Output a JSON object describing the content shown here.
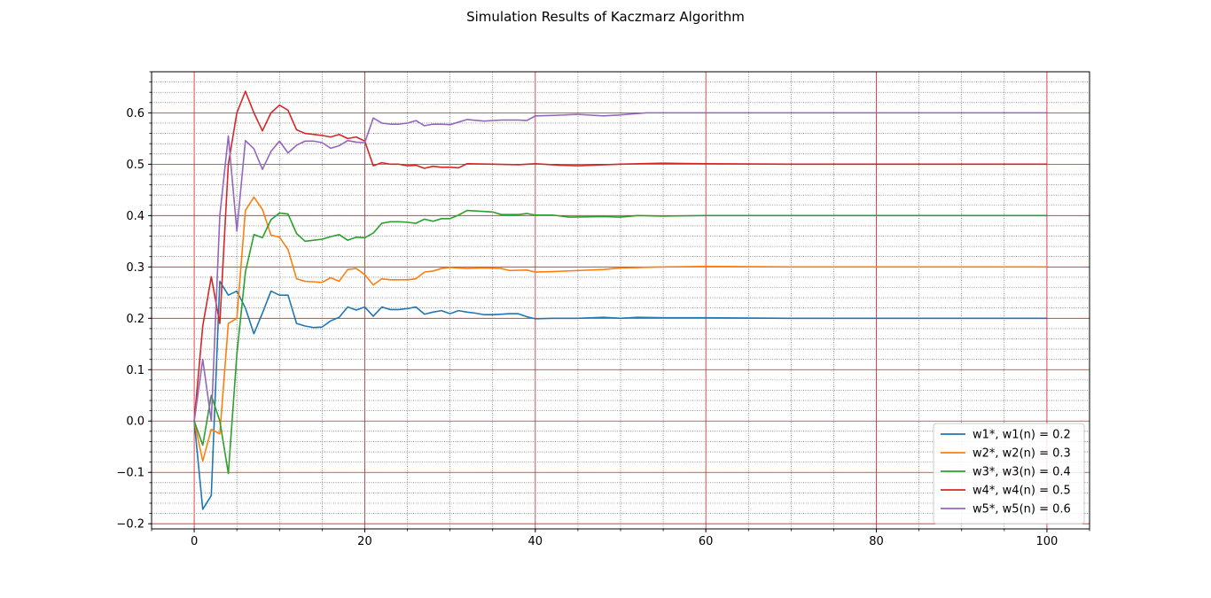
{
  "chart_data": {
    "type": "line",
    "title": "Simulation Results of Kaczmarz Algorithm",
    "xlabel": "",
    "ylabel": "",
    "xlim": [
      -5,
      105
    ],
    "ylim": [
      -0.21,
      0.68
    ],
    "x_ticks": [
      0,
      20,
      40,
      60,
      80,
      100
    ],
    "x_tick_labels": [
      "0",
      "20",
      "40",
      "60",
      "80",
      "100"
    ],
    "x_minor_step": 5,
    "y_ticks": [
      -0.2,
      -0.1,
      0.0,
      0.1,
      0.2,
      0.3,
      0.4,
      0.5,
      0.6
    ],
    "y_tick_labels": [
      "−0.2",
      "−0.1",
      "0.0",
      "0.1",
      "0.2",
      "0.3",
      "0.4",
      "0.5",
      "0.6"
    ],
    "y_minor_step": 0.02,
    "grid": {
      "major": true,
      "major_color": "#d62728",
      "minor": true,
      "minor_style": "dotted",
      "minor_color": "#555555"
    },
    "legend_position": "lower-right",
    "series": [
      {
        "name": "w1*, w1(n) = 0.2",
        "color": "#1f77b4",
        "points": [
          [
            0,
            0
          ],
          [
            1,
            -0.172
          ],
          [
            2,
            -0.145
          ],
          [
            3,
            0.272
          ],
          [
            4,
            0.245
          ],
          [
            5,
            0.253
          ],
          [
            6,
            0.22
          ],
          [
            7,
            0.17
          ],
          [
            8,
            0.21
          ],
          [
            9,
            0.253
          ],
          [
            10,
            0.245
          ],
          [
            11,
            0.245
          ],
          [
            12,
            0.19
          ],
          [
            13,
            0.185
          ],
          [
            14,
            0.182
          ],
          [
            15,
            0.183
          ],
          [
            16,
            0.195
          ],
          [
            17,
            0.202
          ],
          [
            18,
            0.222
          ],
          [
            19,
            0.216
          ],
          [
            20,
            0.222
          ],
          [
            21,
            0.204
          ],
          [
            22,
            0.222
          ],
          [
            23,
            0.217
          ],
          [
            24,
            0.217
          ],
          [
            25,
            0.219
          ],
          [
            26,
            0.222
          ],
          [
            27,
            0.208
          ],
          [
            28,
            0.212
          ],
          [
            29,
            0.215
          ],
          [
            30,
            0.209
          ],
          [
            31,
            0.215
          ],
          [
            32,
            0.212
          ],
          [
            33,
            0.21
          ],
          [
            34,
            0.207
          ],
          [
            35,
            0.207
          ],
          [
            36,
            0.208
          ],
          [
            37,
            0.209
          ],
          [
            38,
            0.209
          ],
          [
            39,
            0.203
          ],
          [
            40,
            0.199
          ],
          [
            42,
            0.2
          ],
          [
            45,
            0.2
          ],
          [
            48,
            0.202
          ],
          [
            50,
            0.2
          ],
          [
            52,
            0.202
          ],
          [
            55,
            0.201
          ],
          [
            60,
            0.201
          ],
          [
            70,
            0.2
          ],
          [
            80,
            0.2
          ],
          [
            90,
            0.2
          ],
          [
            100,
            0.2
          ]
        ]
      },
      {
        "name": "w2*, w2(n) = 0.3",
        "color": "#ff7f0e",
        "points": [
          [
            0,
            0
          ],
          [
            1,
            -0.078
          ],
          [
            2,
            -0.016
          ],
          [
            3,
            -0.025
          ],
          [
            4,
            0.19
          ],
          [
            5,
            0.2
          ],
          [
            6,
            0.41
          ],
          [
            7,
            0.436
          ],
          [
            8,
            0.412
          ],
          [
            9,
            0.362
          ],
          [
            10,
            0.358
          ],
          [
            11,
            0.334
          ],
          [
            12,
            0.277
          ],
          [
            13,
            0.272
          ],
          [
            14,
            0.271
          ],
          [
            15,
            0.27
          ],
          [
            16,
            0.279
          ],
          [
            17,
            0.272
          ],
          [
            18,
            0.295
          ],
          [
            19,
            0.297
          ],
          [
            20,
            0.285
          ],
          [
            21,
            0.265
          ],
          [
            22,
            0.277
          ],
          [
            23,
            0.275
          ],
          [
            24,
            0.275
          ],
          [
            25,
            0.275
          ],
          [
            26,
            0.277
          ],
          [
            27,
            0.29
          ],
          [
            28,
            0.292
          ],
          [
            29,
            0.297
          ],
          [
            30,
            0.299
          ],
          [
            32,
            0.297
          ],
          [
            34,
            0.298
          ],
          [
            36,
            0.297
          ],
          [
            37,
            0.293
          ],
          [
            39,
            0.294
          ],
          [
            40,
            0.29
          ],
          [
            42,
            0.291
          ],
          [
            45,
            0.293
          ],
          [
            48,
            0.295
          ],
          [
            50,
            0.298
          ],
          [
            55,
            0.3
          ],
          [
            60,
            0.301
          ],
          [
            70,
            0.3
          ],
          [
            80,
            0.3
          ],
          [
            90,
            0.3
          ],
          [
            100,
            0.3
          ]
        ]
      },
      {
        "name": "w3*, w3(n) = 0.4",
        "color": "#2ca02c",
        "points": [
          [
            0,
            0
          ],
          [
            1,
            -0.047
          ],
          [
            2,
            0.05
          ],
          [
            3,
            0.0
          ],
          [
            4,
            -0.102
          ],
          [
            5,
            0.13
          ],
          [
            6,
            0.29
          ],
          [
            7,
            0.363
          ],
          [
            8,
            0.357
          ],
          [
            9,
            0.392
          ],
          [
            10,
            0.405
          ],
          [
            11,
            0.403
          ],
          [
            12,
            0.365
          ],
          [
            13,
            0.35
          ],
          [
            14,
            0.352
          ],
          [
            15,
            0.354
          ],
          [
            16,
            0.359
          ],
          [
            17,
            0.363
          ],
          [
            18,
            0.352
          ],
          [
            19,
            0.358
          ],
          [
            20,
            0.357
          ],
          [
            21,
            0.366
          ],
          [
            22,
            0.385
          ],
          [
            23,
            0.388
          ],
          [
            24,
            0.388
          ],
          [
            25,
            0.387
          ],
          [
            26,
            0.385
          ],
          [
            27,
            0.393
          ],
          [
            28,
            0.389
          ],
          [
            29,
            0.394
          ],
          [
            30,
            0.394
          ],
          [
            31,
            0.401
          ],
          [
            32,
            0.41
          ],
          [
            34,
            0.408
          ],
          [
            35,
            0.407
          ],
          [
            36,
            0.402
          ],
          [
            38,
            0.402
          ],
          [
            39,
            0.404
          ],
          [
            40,
            0.401
          ],
          [
            42,
            0.401
          ],
          [
            44,
            0.397
          ],
          [
            48,
            0.398
          ],
          [
            50,
            0.397
          ],
          [
            52,
            0.4
          ],
          [
            55,
            0.399
          ],
          [
            60,
            0.4
          ],
          [
            70,
            0.4
          ],
          [
            80,
            0.4
          ],
          [
            90,
            0.4
          ],
          [
            100,
            0.4
          ]
        ]
      },
      {
        "name": "w4*, w4(n) = 0.5",
        "color": "#d62728",
        "points": [
          [
            0,
            0
          ],
          [
            1,
            0.185
          ],
          [
            2,
            0.281
          ],
          [
            3,
            0.19
          ],
          [
            4,
            0.5
          ],
          [
            5,
            0.6
          ],
          [
            6,
            0.642
          ],
          [
            7,
            0.6
          ],
          [
            8,
            0.565
          ],
          [
            9,
            0.6
          ],
          [
            10,
            0.615
          ],
          [
            11,
            0.605
          ],
          [
            12,
            0.567
          ],
          [
            13,
            0.56
          ],
          [
            14,
            0.558
          ],
          [
            15,
            0.556
          ],
          [
            16,
            0.553
          ],
          [
            17,
            0.558
          ],
          [
            18,
            0.55
          ],
          [
            19,
            0.553
          ],
          [
            20,
            0.545
          ],
          [
            21,
            0.497
          ],
          [
            22,
            0.503
          ],
          [
            23,
            0.5
          ],
          [
            24,
            0.5
          ],
          [
            25,
            0.497
          ],
          [
            26,
            0.498
          ],
          [
            27,
            0.492
          ],
          [
            28,
            0.496
          ],
          [
            29,
            0.494
          ],
          [
            30,
            0.494
          ],
          [
            31,
            0.493
          ],
          [
            32,
            0.501
          ],
          [
            35,
            0.5
          ],
          [
            38,
            0.499
          ],
          [
            40,
            0.501
          ],
          [
            43,
            0.498
          ],
          [
            45,
            0.497
          ],
          [
            50,
            0.5
          ],
          [
            55,
            0.502
          ],
          [
            60,
            0.501
          ],
          [
            70,
            0.5
          ],
          [
            80,
            0.5
          ],
          [
            90,
            0.5
          ],
          [
            100,
            0.5
          ]
        ]
      },
      {
        "name": "w5*, w5(n) = 0.6",
        "color": "#9467bd",
        "points": [
          [
            0,
            0
          ],
          [
            1,
            0.12
          ],
          [
            2,
            0.0
          ],
          [
            3,
            0.4
          ],
          [
            4,
            0.555
          ],
          [
            5,
            0.37
          ],
          [
            6,
            0.546
          ],
          [
            7,
            0.53
          ],
          [
            8,
            0.49
          ],
          [
            9,
            0.525
          ],
          [
            10,
            0.545
          ],
          [
            11,
            0.522
          ],
          [
            12,
            0.537
          ],
          [
            13,
            0.545
          ],
          [
            14,
            0.545
          ],
          [
            15,
            0.542
          ],
          [
            16,
            0.531
          ],
          [
            17,
            0.536
          ],
          [
            18,
            0.546
          ],
          [
            19,
            0.543
          ],
          [
            20,
            0.542
          ],
          [
            21,
            0.59
          ],
          [
            22,
            0.58
          ],
          [
            23,
            0.578
          ],
          [
            24,
            0.578
          ],
          [
            25,
            0.58
          ],
          [
            26,
            0.585
          ],
          [
            27,
            0.575
          ],
          [
            28,
            0.578
          ],
          [
            29,
            0.578
          ],
          [
            30,
            0.577
          ],
          [
            31,
            0.582
          ],
          [
            32,
            0.587
          ],
          [
            34,
            0.584
          ],
          [
            36,
            0.586
          ],
          [
            38,
            0.586
          ],
          [
            39,
            0.585
          ],
          [
            40,
            0.594
          ],
          [
            42,
            0.595
          ],
          [
            45,
            0.597
          ],
          [
            48,
            0.594
          ],
          [
            50,
            0.596
          ],
          [
            53,
            0.6
          ],
          [
            60,
            0.6
          ],
          [
            70,
            0.6
          ],
          [
            80,
            0.6
          ],
          [
            90,
            0.6
          ],
          [
            100,
            0.6
          ]
        ]
      }
    ]
  }
}
